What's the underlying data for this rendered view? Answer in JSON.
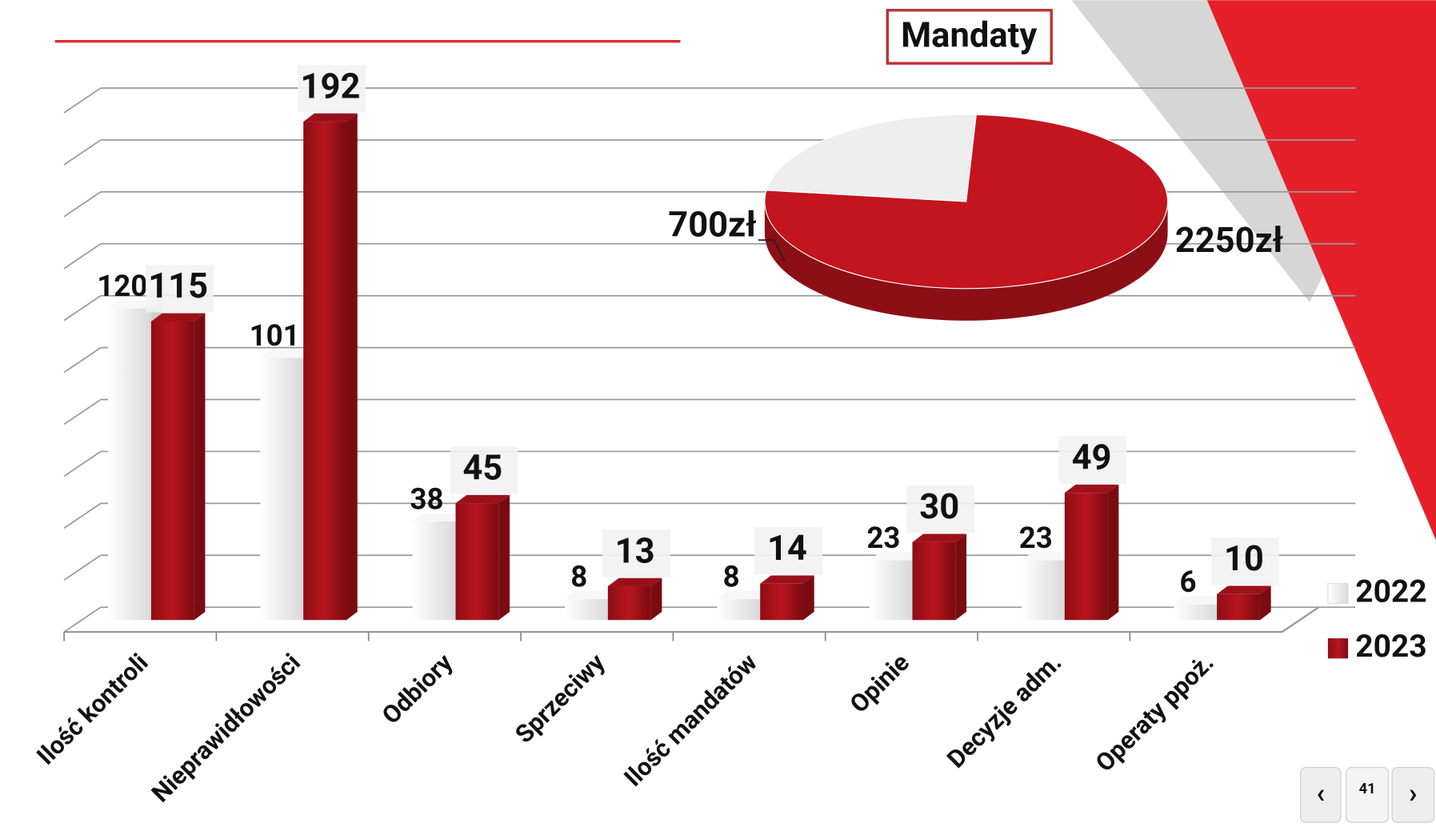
{
  "chart_data": [
    {
      "type": "bar",
      "categories": [
        "Ilość kontroli",
        "Nieprawidłowości",
        "Odbiory",
        "Sprzeciwy",
        "Ilość mandatów",
        "Opinie",
        "Decyzje adm.",
        "Operaty ppoż."
      ],
      "series": [
        {
          "name": "2022",
          "color": "#eeeeee",
          "values": [
            120,
            101,
            38,
            8,
            8,
            23,
            23,
            6
          ]
        },
        {
          "name": "2023",
          "color": "#b3141e",
          "values": [
            115,
            192,
            45,
            13,
            14,
            30,
            49,
            10
          ]
        }
      ],
      "ylim": [
        0,
        200
      ],
      "yticks": [
        0,
        20,
        40,
        60,
        80,
        100,
        120,
        140,
        160,
        180,
        200
      ],
      "grid": true,
      "legend": "right"
    },
    {
      "type": "pie",
      "title": "Mandaty",
      "categories": [
        "2022",
        "2023"
      ],
      "values": [
        700,
        2250
      ],
      "value_labels": [
        "700zł",
        "2250zł"
      ],
      "colors": [
        "#eeeeee",
        "#c4141e"
      ]
    }
  ],
  "nav": {
    "page": "41"
  }
}
